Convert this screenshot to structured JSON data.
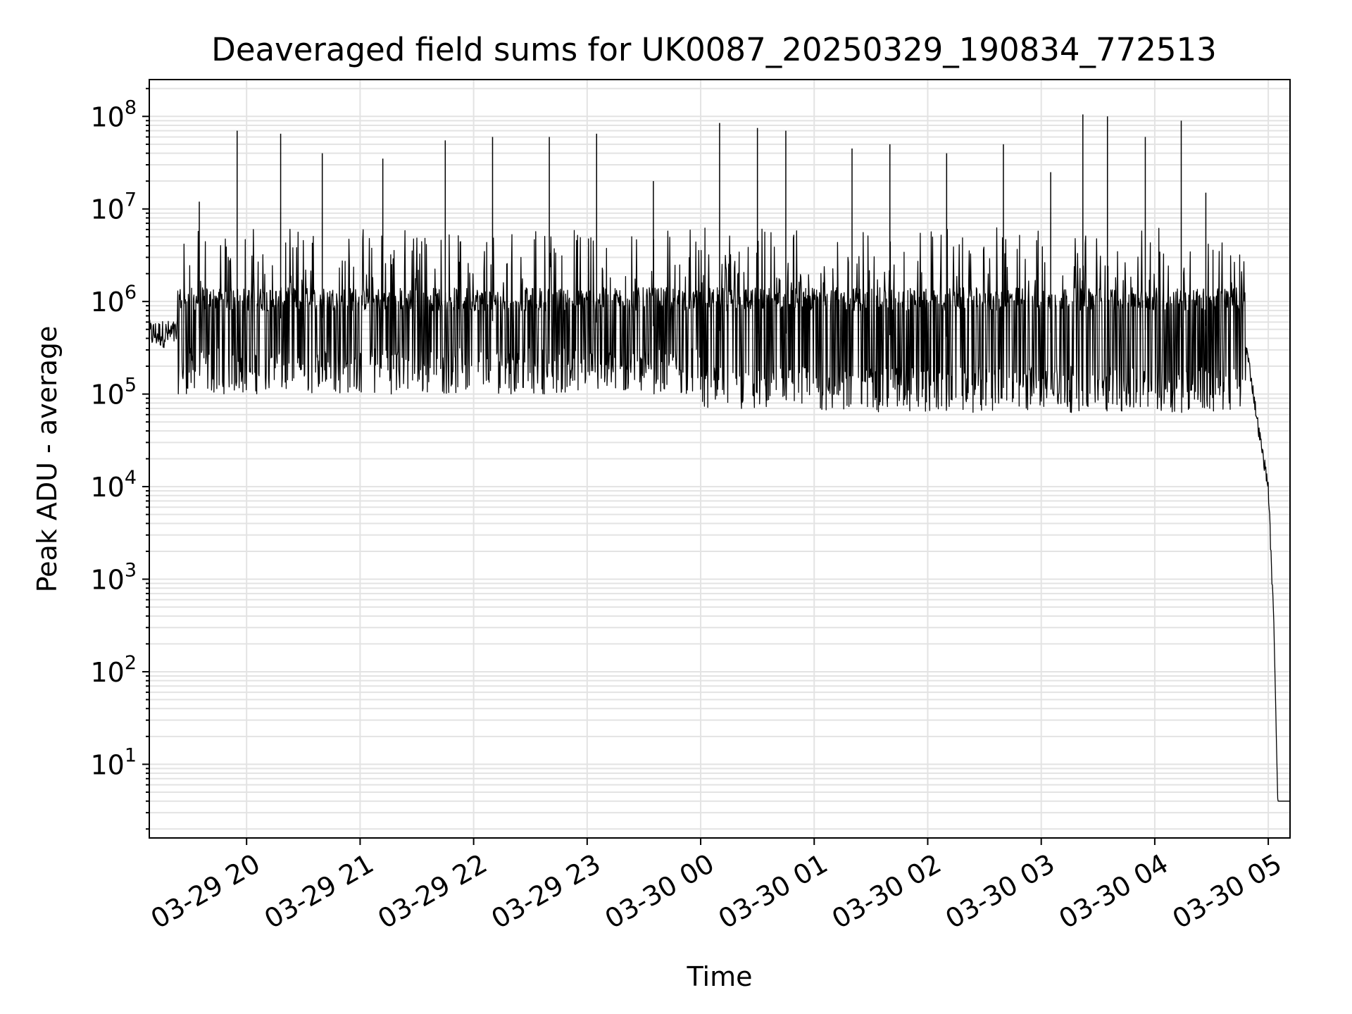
{
  "chart_data": {
    "type": "line",
    "title": "Deaveraged field sums for UK0087_20250329_190834_772513",
    "xlabel": "Time",
    "ylabel": "Peak ADU - average",
    "yscale": "log",
    "ylim": [
      1.6,
      250000000
    ],
    "xlim": [
      "03-29 19:08:34",
      "03-30 05:11:30"
    ],
    "grid": true,
    "line_color": "#000000",
    "x_ticks": [
      "03-29 20",
      "03-29 21",
      "03-29 22",
      "03-29 23",
      "03-30 00",
      "03-30 01",
      "03-30 02",
      "03-30 03",
      "03-30 04",
      "03-30 05"
    ],
    "y_ticks": [
      {
        "base": "10",
        "exp": "1"
      },
      {
        "base": "10",
        "exp": "2"
      },
      {
        "base": "10",
        "exp": "3"
      },
      {
        "base": "10",
        "exp": "4"
      },
      {
        "base": "10",
        "exp": "5"
      },
      {
        "base": "10",
        "exp": "6"
      },
      {
        "base": "10",
        "exp": "7"
      },
      {
        "base": "10",
        "exp": "8"
      }
    ],
    "series": [
      {
        "x": [
          "03-29 19:08:34",
          "03-29 19:30",
          "03-29 20:00",
          "03-29 20:30",
          "03-29 21:00",
          "03-29 21:30",
          "03-29 22:00",
          "03-29 22:30",
          "03-29 23:00",
          "03-29 23:30",
          "03-30 00:00",
          "03-30 00:30",
          "03-30 01:00",
          "03-30 01:30",
          "03-30 02:00",
          "03-30 02:30",
          "03-30 03:00",
          "03-30 03:30",
          "03-30 04:00",
          "03-30 04:30",
          "03-30 04:45",
          "03-30 04:50",
          "03-30 04:55",
          "03-30 05:00",
          "03-30 05:03",
          "03-30 05:05",
          "03-30 05:11:30"
        ],
        "y": [
          350000,
          500000,
          600000,
          700000,
          600000,
          650000,
          600000,
          650000,
          600000,
          550000,
          500000,
          450000,
          450000,
          450000,
          400000,
          450000,
          450000,
          500000,
          500000,
          550000,
          800000,
          200000,
          40000,
          10000,
          300,
          4,
          4
        ]
      }
    ],
    "spikes": [
      {
        "x": "03-29 19:35",
        "y": 12000000
      },
      {
        "x": "03-29 19:55",
        "y": 70000000
      },
      {
        "x": "03-29 20:18",
        "y": 65000000
      },
      {
        "x": "03-29 20:40",
        "y": 40000000
      },
      {
        "x": "03-29 21:12",
        "y": 35000000
      },
      {
        "x": "03-29 21:45",
        "y": 55000000
      },
      {
        "x": "03-29 22:10",
        "y": 60000000
      },
      {
        "x": "03-29 22:40",
        "y": 60000000
      },
      {
        "x": "03-29 23:05",
        "y": 65000000
      },
      {
        "x": "03-29 23:35",
        "y": 20000000
      },
      {
        "x": "03-30 00:10",
        "y": 85000000
      },
      {
        "x": "03-30 00:30",
        "y": 75000000
      },
      {
        "x": "03-30 00:45",
        "y": 70000000
      },
      {
        "x": "03-30 01:20",
        "y": 45000000
      },
      {
        "x": "03-30 01:40",
        "y": 50000000
      },
      {
        "x": "03-30 02:10",
        "y": 40000000
      },
      {
        "x": "03-30 02:40",
        "y": 50000000
      },
      {
        "x": "03-30 03:05",
        "y": 25000000
      },
      {
        "x": "03-30 03:22",
        "y": 105000000
      },
      {
        "x": "03-30 03:35",
        "y": 100000000
      },
      {
        "x": "03-30 03:55",
        "y": 60000000
      },
      {
        "x": "03-30 04:14",
        "y": 90000000
      },
      {
        "x": "03-30 04:27",
        "y": 15000000
      }
    ]
  }
}
